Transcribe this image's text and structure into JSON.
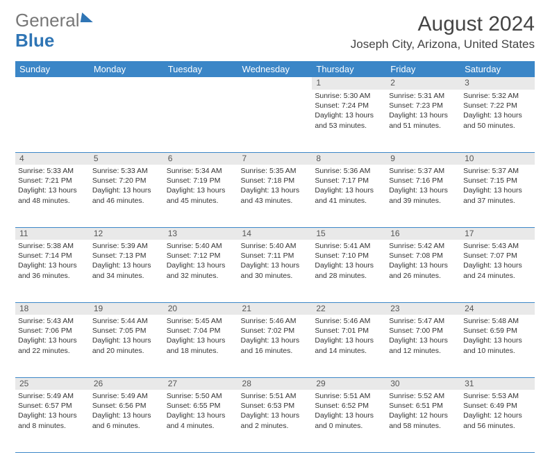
{
  "logo": {
    "part1": "General",
    "part2": "Blue"
  },
  "title": "August 2024",
  "location": "Joseph City, Arizona, United States",
  "calendar": {
    "type": "table",
    "header_bg": "#3b86c7",
    "header_fg": "#ffffff",
    "border_color": "#3b86c7",
    "daynum_bg": "#e9e9e9",
    "background_color": "#ffffff",
    "text_color": "#333333",
    "title_fontsize": 30,
    "location_fontsize": 17,
    "header_fontsize": 13,
    "cell_fontsize": 10.5,
    "columns": [
      "Sunday",
      "Monday",
      "Tuesday",
      "Wednesday",
      "Thursday",
      "Friday",
      "Saturday"
    ],
    "first_weekday": 4,
    "days_in_month": 31,
    "days": [
      {
        "n": 1,
        "sunrise": "5:30 AM",
        "sunset": "7:24 PM",
        "daylight": "13 hours and 53 minutes."
      },
      {
        "n": 2,
        "sunrise": "5:31 AM",
        "sunset": "7:23 PM",
        "daylight": "13 hours and 51 minutes."
      },
      {
        "n": 3,
        "sunrise": "5:32 AM",
        "sunset": "7:22 PM",
        "daylight": "13 hours and 50 minutes."
      },
      {
        "n": 4,
        "sunrise": "5:33 AM",
        "sunset": "7:21 PM",
        "daylight": "13 hours and 48 minutes."
      },
      {
        "n": 5,
        "sunrise": "5:33 AM",
        "sunset": "7:20 PM",
        "daylight": "13 hours and 46 minutes."
      },
      {
        "n": 6,
        "sunrise": "5:34 AM",
        "sunset": "7:19 PM",
        "daylight": "13 hours and 45 minutes."
      },
      {
        "n": 7,
        "sunrise": "5:35 AM",
        "sunset": "7:18 PM",
        "daylight": "13 hours and 43 minutes."
      },
      {
        "n": 8,
        "sunrise": "5:36 AM",
        "sunset": "7:17 PM",
        "daylight": "13 hours and 41 minutes."
      },
      {
        "n": 9,
        "sunrise": "5:37 AM",
        "sunset": "7:16 PM",
        "daylight": "13 hours and 39 minutes."
      },
      {
        "n": 10,
        "sunrise": "5:37 AM",
        "sunset": "7:15 PM",
        "daylight": "13 hours and 37 minutes."
      },
      {
        "n": 11,
        "sunrise": "5:38 AM",
        "sunset": "7:14 PM",
        "daylight": "13 hours and 36 minutes."
      },
      {
        "n": 12,
        "sunrise": "5:39 AM",
        "sunset": "7:13 PM",
        "daylight": "13 hours and 34 minutes."
      },
      {
        "n": 13,
        "sunrise": "5:40 AM",
        "sunset": "7:12 PM",
        "daylight": "13 hours and 32 minutes."
      },
      {
        "n": 14,
        "sunrise": "5:40 AM",
        "sunset": "7:11 PM",
        "daylight": "13 hours and 30 minutes."
      },
      {
        "n": 15,
        "sunrise": "5:41 AM",
        "sunset": "7:10 PM",
        "daylight": "13 hours and 28 minutes."
      },
      {
        "n": 16,
        "sunrise": "5:42 AM",
        "sunset": "7:08 PM",
        "daylight": "13 hours and 26 minutes."
      },
      {
        "n": 17,
        "sunrise": "5:43 AM",
        "sunset": "7:07 PM",
        "daylight": "13 hours and 24 minutes."
      },
      {
        "n": 18,
        "sunrise": "5:43 AM",
        "sunset": "7:06 PM",
        "daylight": "13 hours and 22 minutes."
      },
      {
        "n": 19,
        "sunrise": "5:44 AM",
        "sunset": "7:05 PM",
        "daylight": "13 hours and 20 minutes."
      },
      {
        "n": 20,
        "sunrise": "5:45 AM",
        "sunset": "7:04 PM",
        "daylight": "13 hours and 18 minutes."
      },
      {
        "n": 21,
        "sunrise": "5:46 AM",
        "sunset": "7:02 PM",
        "daylight": "13 hours and 16 minutes."
      },
      {
        "n": 22,
        "sunrise": "5:46 AM",
        "sunset": "7:01 PM",
        "daylight": "13 hours and 14 minutes."
      },
      {
        "n": 23,
        "sunrise": "5:47 AM",
        "sunset": "7:00 PM",
        "daylight": "13 hours and 12 minutes."
      },
      {
        "n": 24,
        "sunrise": "5:48 AM",
        "sunset": "6:59 PM",
        "daylight": "13 hours and 10 minutes."
      },
      {
        "n": 25,
        "sunrise": "5:49 AM",
        "sunset": "6:57 PM",
        "daylight": "13 hours and 8 minutes."
      },
      {
        "n": 26,
        "sunrise": "5:49 AM",
        "sunset": "6:56 PM",
        "daylight": "13 hours and 6 minutes."
      },
      {
        "n": 27,
        "sunrise": "5:50 AM",
        "sunset": "6:55 PM",
        "daylight": "13 hours and 4 minutes."
      },
      {
        "n": 28,
        "sunrise": "5:51 AM",
        "sunset": "6:53 PM",
        "daylight": "13 hours and 2 minutes."
      },
      {
        "n": 29,
        "sunrise": "5:51 AM",
        "sunset": "6:52 PM",
        "daylight": "13 hours and 0 minutes."
      },
      {
        "n": 30,
        "sunrise": "5:52 AM",
        "sunset": "6:51 PM",
        "daylight": "12 hours and 58 minutes."
      },
      {
        "n": 31,
        "sunrise": "5:53 AM",
        "sunset": "6:49 PM",
        "daylight": "12 hours and 56 minutes."
      }
    ]
  }
}
